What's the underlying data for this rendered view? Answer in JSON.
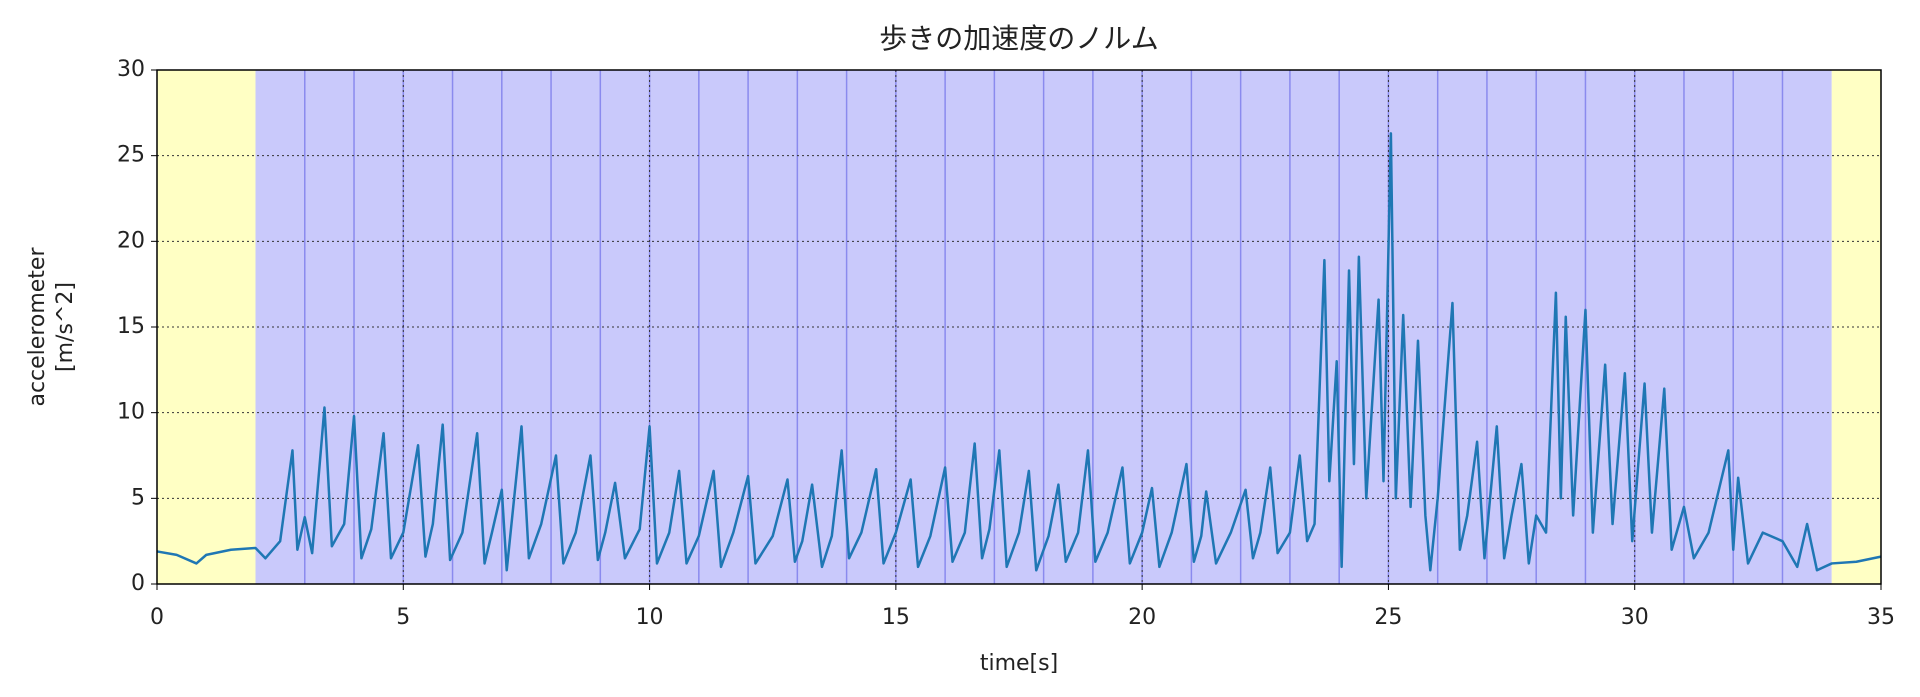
{
  "chart_data": {
    "type": "line",
    "title": "歩きの加速度のノルム",
    "xlabel": "time[s]",
    "ylabel": [
      "accelerometer",
      "[m/s^2]"
    ],
    "xlim": [
      0,
      35
    ],
    "ylim": [
      0,
      30
    ],
    "xticks": [
      0,
      5,
      10,
      15,
      20,
      25,
      30,
      35
    ],
    "yticks": [
      0,
      5,
      10,
      15,
      20,
      25,
      30
    ],
    "grid": true,
    "regions": [
      {
        "start": 0,
        "end": 2,
        "color": "#ffffc4"
      },
      {
        "start": 2,
        "end": 34,
        "color": "#c9c9fb"
      },
      {
        "start": 34,
        "end": 35,
        "color": "#ffffc4"
      }
    ],
    "step_lines": [
      3,
      4,
      5,
      6,
      7,
      8,
      9,
      10,
      11,
      12,
      13,
      14,
      15,
      16,
      17,
      18,
      19,
      20,
      21,
      22,
      23,
      24,
      25,
      26,
      27,
      28,
      29,
      30,
      31,
      32,
      33
    ],
    "step_line_color": "#8a8aee",
    "color": "#1f77b4",
    "x": [
      0,
      0.4,
      0.8,
      1.0,
      1.5,
      2.0,
      2.2,
      2.5,
      2.75,
      2.85,
      3.0,
      3.15,
      3.4,
      3.55,
      3.8,
      4.0,
      4.15,
      4.35,
      4.6,
      4.75,
      5.0,
      5.3,
      5.45,
      5.6,
      5.8,
      5.95,
      6.2,
      6.5,
      6.65,
      6.8,
      7.0,
      7.1,
      7.4,
      7.55,
      7.8,
      8.1,
      8.25,
      8.5,
      8.8,
      8.95,
      9.1,
      9.3,
      9.5,
      9.8,
      10.0,
      10.15,
      10.4,
      10.6,
      10.75,
      11.0,
      11.3,
      11.45,
      11.7,
      12.0,
      12.15,
      12.5,
      12.8,
      12.95,
      13.1,
      13.3,
      13.5,
      13.7,
      13.9,
      14.05,
      14.3,
      14.6,
      14.75,
      15.0,
      15.3,
      15.45,
      15.7,
      16.0,
      16.15,
      16.4,
      16.6,
      16.75,
      16.9,
      17.1,
      17.25,
      17.5,
      17.7,
      17.85,
      18.1,
      18.3,
      18.45,
      18.7,
      18.9,
      19.05,
      19.3,
      19.6,
      19.75,
      20.0,
      20.2,
      20.35,
      20.6,
      20.9,
      21.05,
      21.2,
      21.3,
      21.5,
      21.8,
      22.1,
      22.25,
      22.4,
      22.6,
      22.75,
      23.0,
      23.2,
      23.35,
      23.5,
      23.7,
      23.8,
      23.95,
      24.05,
      24.2,
      24.3,
      24.4,
      24.55,
      24.8,
      24.9,
      25.05,
      25.15,
      25.3,
      25.45,
      25.6,
      25.75,
      25.85,
      26.0,
      26.3,
      26.45,
      26.6,
      26.8,
      26.95,
      27.2,
      27.35,
      27.5,
      27.7,
      27.85,
      28.0,
      28.2,
      28.4,
      28.5,
      28.6,
      28.75,
      29.0,
      29.15,
      29.4,
      29.55,
      29.8,
      29.95,
      30.2,
      30.35,
      30.6,
      30.75,
      31.0,
      31.2,
      31.5,
      31.9,
      32.0,
      32.1,
      32.3,
      32.6,
      33.0,
      33.3,
      33.5,
      33.7,
      34.0,
      34.5,
      35.0
    ],
    "values": [
      1.9,
      1.7,
      1.2,
      1.7,
      2.0,
      2.1,
      1.5,
      2.5,
      7.8,
      2.0,
      3.9,
      1.8,
      10.3,
      2.2,
      3.5,
      9.8,
      1.5,
      3.2,
      8.8,
      1.5,
      3.0,
      8.1,
      1.6,
      3.5,
      9.3,
      1.4,
      3.0,
      8.8,
      1.2,
      3.0,
      5.5,
      0.8,
      9.2,
      1.5,
      3.5,
      7.5,
      1.2,
      3.0,
      7.5,
      1.4,
      3.0,
      5.9,
      1.5,
      3.2,
      9.2,
      1.2,
      3.0,
      6.6,
      1.2,
      2.8,
      6.6,
      1.0,
      3.0,
      6.3,
      1.2,
      2.8,
      6.1,
      1.3,
      2.5,
      5.8,
      1.0,
      2.8,
      7.8,
      1.5,
      3.0,
      6.7,
      1.2,
      3.0,
      6.1,
      1.0,
      2.8,
      6.8,
      1.3,
      3.0,
      8.2,
      1.5,
      3.2,
      7.8,
      1.0,
      3.0,
      6.6,
      0.8,
      2.8,
      5.8,
      1.3,
      3.0,
      7.8,
      1.3,
      3.0,
      6.8,
      1.2,
      3.0,
      5.6,
      1.0,
      3.0,
      7.0,
      1.3,
      2.8,
      5.4,
      1.2,
      3.0,
      5.5,
      1.5,
      3.0,
      6.8,
      1.8,
      3.0,
      7.5,
      2.5,
      3.5,
      18.9,
      6.0,
      13.0,
      1.0,
      18.3,
      7.0,
      19.1,
      5.0,
      16.6,
      6.0,
      26.3,
      5.0,
      15.7,
      4.5,
      14.2,
      4.0,
      0.8,
      5.0,
      16.4,
      2.0,
      4.0,
      8.3,
      1.5,
      9.2,
      1.5,
      4.0,
      7.0,
      1.2,
      4.0,
      3.0,
      17.0,
      5.0,
      15.6,
      4.0,
      16.0,
      3.0,
      12.8,
      3.5,
      12.3,
      2.5,
      11.7,
      3.0,
      11.4,
      2.0,
      4.5,
      1.5,
      3.0,
      7.8,
      2.0,
      6.2,
      1.2,
      3.0,
      2.5,
      1.0,
      3.5,
      0.8,
      1.2,
      1.3,
      1.6
    ]
  }
}
